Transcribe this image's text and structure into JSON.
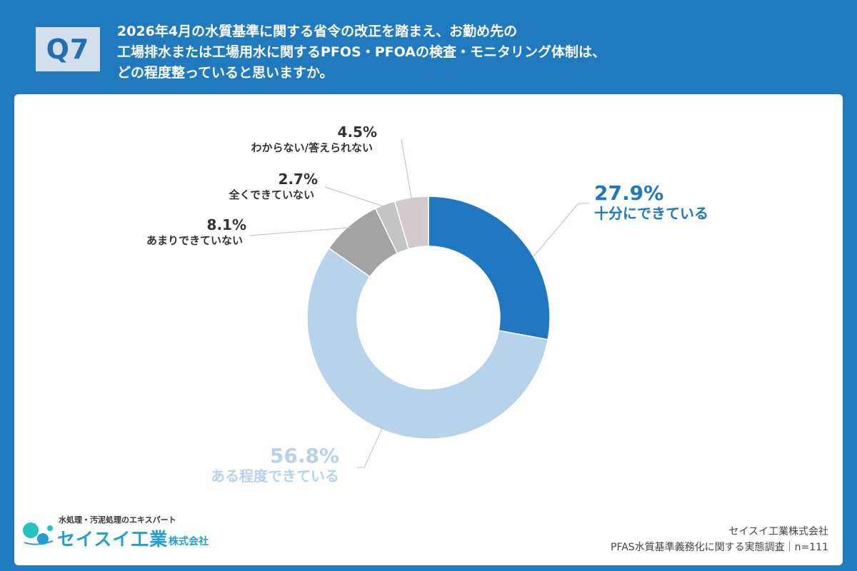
{
  "header": {
    "badge": "Q7",
    "question_lines": [
      "2026年4月の水質基準に関する省令の改正を踏まえ、お勤め先の",
      "工場排水または工場用水に関するPFOS・PFOAの検査・モニタリング体制は、",
      "どの程度整っていると思いますか。"
    ]
  },
  "chart_data": {
    "type": "pie",
    "subtype": "donut",
    "title": "",
    "categories": [
      "十分にできている",
      "ある程度できている",
      "あまりできていない",
      "全くできていない",
      "わからない/答えられない"
    ],
    "values": [
      27.9,
      56.8,
      8.1,
      2.7,
      4.5
    ],
    "value_labels": [
      "27.9%",
      "56.8%",
      "8.1%",
      "2.7%",
      "4.5%"
    ],
    "colors": [
      "#1f77c2",
      "#b7d2eb",
      "#a3a3a3",
      "#c4c4c4",
      "#d2cacc"
    ],
    "label_colors": [
      "#1f77c2",
      "#b7d2eb",
      "#333333",
      "#333333",
      "#333333"
    ],
    "start": "12 o'clock",
    "direction": "clockwise"
  },
  "footer": {
    "company": "セイスイ工業株式会社",
    "survey": "PFAS水質基準義務化に関する実態調査｜n=111"
  },
  "logo": {
    "tagline": "水処理・汚泥処理のエキスパート",
    "name": "セイスイ工業",
    "suffix": "株式会社",
    "colors": {
      "primary": "#1f9fd4",
      "accent": "#23c4c0"
    }
  }
}
